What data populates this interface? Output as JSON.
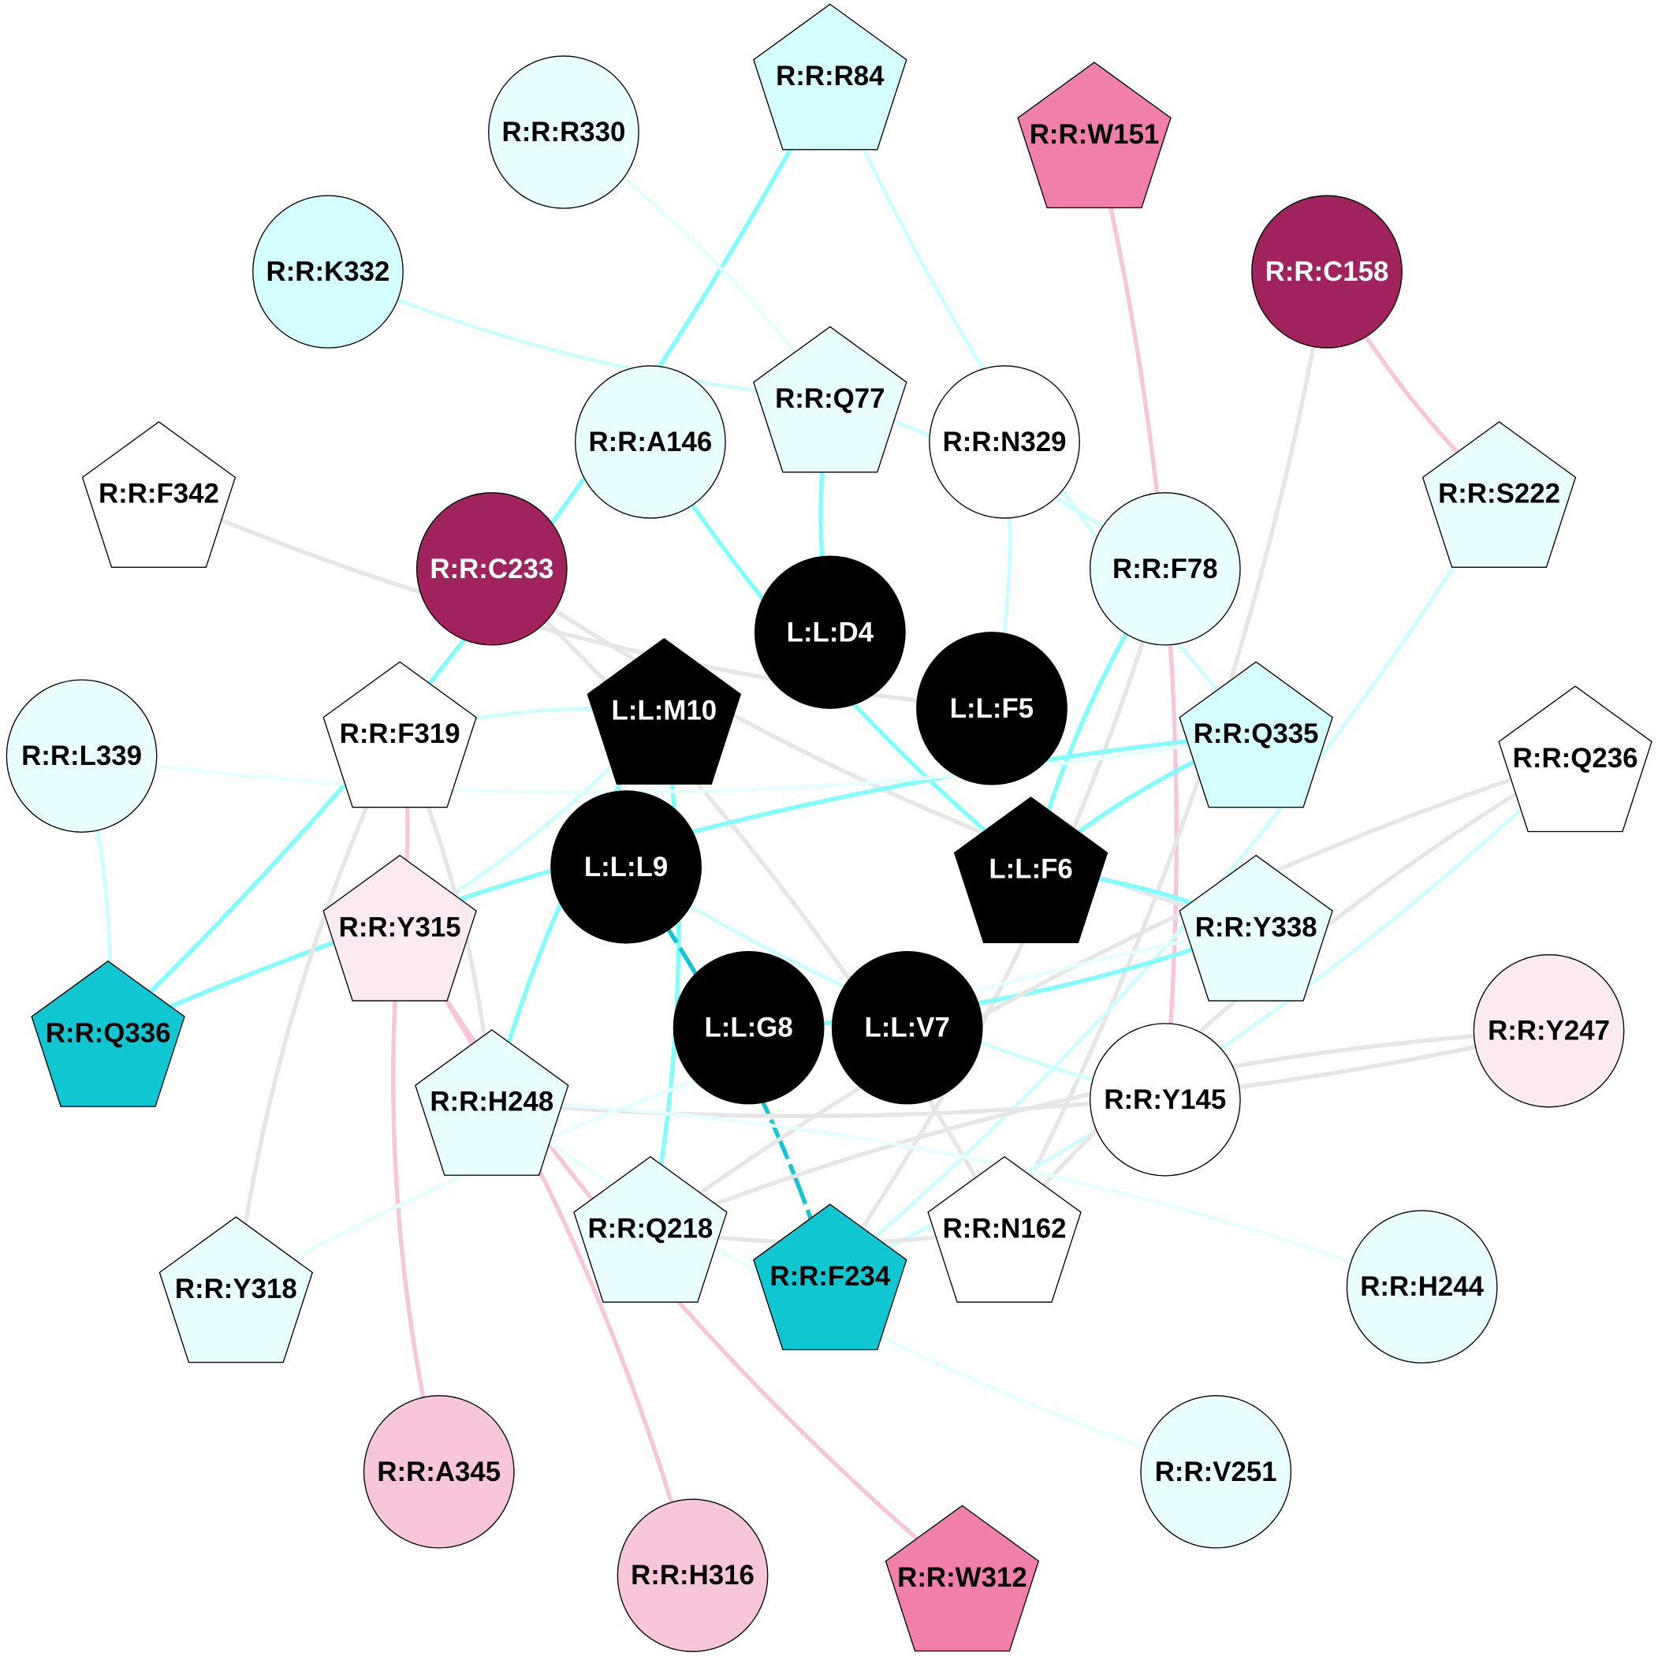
{
  "colors": {
    "cyan_strong": "#80ffff",
    "cyan_light": "#ccffff",
    "cyan_faint": "#e6ffff",
    "gray": "#e6e6e6",
    "pink": "#f7c6da",
    "teal": "#10c6d0"
  },
  "nodes": [
    {
      "id": "R84",
      "label": "R:R:R84",
      "shape": "pentagon",
      "fill": "#d4feff",
      "text": "#000000"
    },
    {
      "id": "R330",
      "label": "R:R:R330",
      "shape": "circle",
      "fill": "#e8feff",
      "text": "#000000"
    },
    {
      "id": "W151",
      "label": "R:R:W151",
      "shape": "pentagon",
      "fill": "#f07fab",
      "text": "#000000"
    },
    {
      "id": "K332",
      "label": "R:R:K332",
      "shape": "circle",
      "fill": "#d4feff",
      "text": "#000000"
    },
    {
      "id": "C158",
      "label": "R:R:C158",
      "shape": "circle",
      "fill": "#a0235e",
      "text": "#ffffff"
    },
    {
      "id": "Q77",
      "label": "R:R:Q77",
      "shape": "pentagon",
      "fill": "#e8feff",
      "text": "#000000"
    },
    {
      "id": "A146",
      "label": "R:R:A146",
      "shape": "circle",
      "fill": "#e8feff",
      "text": "#000000"
    },
    {
      "id": "N329",
      "label": "R:R:N329",
      "shape": "circle",
      "fill": "#ffffff",
      "text": "#000000"
    },
    {
      "id": "F342",
      "label": "R:R:F342",
      "shape": "pentagon",
      "fill": "#ffffff",
      "text": "#000000"
    },
    {
      "id": "S222",
      "label": "R:R:S222",
      "shape": "pentagon",
      "fill": "#e8feff",
      "text": "#000000"
    },
    {
      "id": "C233",
      "label": "R:R:C233",
      "shape": "circle",
      "fill": "#a0235e",
      "text": "#ffffff"
    },
    {
      "id": "F78",
      "label": "R:R:F78",
      "shape": "circle",
      "fill": "#e8feff",
      "text": "#000000"
    },
    {
      "id": "D4",
      "label": "L:L:D4",
      "shape": "circle",
      "fill": "#000000",
      "text": "#ffffff"
    },
    {
      "id": "M10",
      "label": "L:L:M10",
      "shape": "pentagon",
      "fill": "#000000",
      "text": "#ffffff"
    },
    {
      "id": "F5",
      "label": "L:L:F5",
      "shape": "circle",
      "fill": "#000000",
      "text": "#ffffff"
    },
    {
      "id": "F319",
      "label": "R:R:F319",
      "shape": "pentagon",
      "fill": "#ffffff",
      "text": "#000000"
    },
    {
      "id": "Q335",
      "label": "R:R:Q335",
      "shape": "pentagon",
      "fill": "#d4feff",
      "text": "#000000"
    },
    {
      "id": "L339",
      "label": "R:R:L339",
      "shape": "circle",
      "fill": "#e8feff",
      "text": "#000000"
    },
    {
      "id": "Q236",
      "label": "R:R:Q236",
      "shape": "pentagon",
      "fill": "#ffffff",
      "text": "#000000"
    },
    {
      "id": "L9",
      "label": "L:L:L9",
      "shape": "circle",
      "fill": "#000000",
      "text": "#ffffff"
    },
    {
      "id": "F6",
      "label": "L:L:F6",
      "shape": "pentagon",
      "fill": "#000000",
      "text": "#ffffff"
    },
    {
      "id": "Y315",
      "label": "R:R:Y315",
      "shape": "pentagon",
      "fill": "#fbeaf1",
      "text": "#000000"
    },
    {
      "id": "Y338",
      "label": "R:R:Y338",
      "shape": "pentagon",
      "fill": "#e8feff",
      "text": "#000000"
    },
    {
      "id": "Q336",
      "label": "R:R:Q336",
      "shape": "pentagon",
      "fill": "#10c6d0",
      "text": "#000000"
    },
    {
      "id": "G8",
      "label": "L:L:G8",
      "shape": "circle",
      "fill": "#000000",
      "text": "#ffffff"
    },
    {
      "id": "V7",
      "label": "L:L:V7",
      "shape": "circle",
      "fill": "#000000",
      "text": "#ffffff"
    },
    {
      "id": "Y247",
      "label": "R:R:Y247",
      "shape": "circle",
      "fill": "#fbeaf1",
      "text": "#000000"
    },
    {
      "id": "H248",
      "label": "R:R:H248",
      "shape": "pentagon",
      "fill": "#e8feff",
      "text": "#000000"
    },
    {
      "id": "Y145",
      "label": "R:R:Y145",
      "shape": "circle",
      "fill": "#ffffff",
      "text": "#000000"
    },
    {
      "id": "Q218",
      "label": "R:R:Q218",
      "shape": "pentagon",
      "fill": "#e8feff",
      "text": "#000000"
    },
    {
      "id": "N162",
      "label": "R:R:N162",
      "shape": "pentagon",
      "fill": "#ffffff",
      "text": "#000000"
    },
    {
      "id": "F234",
      "label": "R:R:F234",
      "shape": "pentagon",
      "fill": "#10c6d0",
      "text": "#000000"
    },
    {
      "id": "Y318",
      "label": "R:R:Y318",
      "shape": "pentagon",
      "fill": "#e8feff",
      "text": "#000000"
    },
    {
      "id": "H244",
      "label": "R:R:H244",
      "shape": "circle",
      "fill": "#e8feff",
      "text": "#000000"
    },
    {
      "id": "A345",
      "label": "R:R:A345",
      "shape": "circle",
      "fill": "#f7c6da",
      "text": "#000000"
    },
    {
      "id": "V251",
      "label": "R:R:V251",
      "shape": "circle",
      "fill": "#e8feff",
      "text": "#000000"
    },
    {
      "id": "H316",
      "label": "R:R:H316",
      "shape": "circle",
      "fill": "#f7c6da",
      "text": "#000000"
    },
    {
      "id": "W312",
      "label": "R:R:W312",
      "shape": "pentagon",
      "fill": "#f07fab",
      "text": "#000000"
    }
  ],
  "edges": [
    {
      "s": "R84",
      "t": "Q336",
      "c": "cyan_strong"
    },
    {
      "s": "R84",
      "t": "Q335",
      "c": "cyan_light"
    },
    {
      "s": "R330",
      "t": "Q77",
      "c": "cyan_faint"
    },
    {
      "s": "K332",
      "t": "Q77",
      "c": "cyan_light"
    },
    {
      "s": "W151",
      "t": "Y145",
      "c": "pink"
    },
    {
      "s": "C158",
      "t": "S222",
      "c": "pink"
    },
    {
      "s": "C158",
      "t": "N162",
      "c": "gray"
    },
    {
      "s": "Q77",
      "t": "D4",
      "c": "cyan_strong"
    },
    {
      "s": "Q77",
      "t": "F78",
      "c": "cyan_light"
    },
    {
      "s": "A146",
      "t": "F6",
      "c": "cyan_strong"
    },
    {
      "s": "N329",
      "t": "F5",
      "c": "cyan_light"
    },
    {
      "s": "F342",
      "t": "F5",
      "c": "gray"
    },
    {
      "s": "S222",
      "t": "F234",
      "c": "cyan_light"
    },
    {
      "s": "C233",
      "t": "Y338",
      "c": "gray"
    },
    {
      "s": "C233",
      "t": "N162",
      "c": "gray"
    },
    {
      "s": "F78",
      "t": "F6",
      "c": "cyan_strong"
    },
    {
      "s": "F78",
      "t": "F234",
      "c": "gray"
    },
    {
      "s": "M10",
      "t": "F319",
      "c": "cyan_light"
    },
    {
      "s": "M10",
      "t": "Y315",
      "c": "cyan_light"
    },
    {
      "s": "M10",
      "t": "H248",
      "c": "cyan_strong"
    },
    {
      "s": "M10",
      "t": "Q218",
      "c": "cyan_strong"
    },
    {
      "s": "Q335",
      "t": "Q336",
      "c": "cyan_strong"
    },
    {
      "s": "Q335",
      "t": "L339",
      "c": "cyan_faint"
    },
    {
      "s": "Q335",
      "t": "F6",
      "c": "cyan_strong"
    },
    {
      "s": "F6",
      "t": "Y338",
      "c": "cyan_strong"
    },
    {
      "s": "G8",
      "t": "Y338",
      "c": "cyan_strong"
    },
    {
      "s": "L9",
      "t": "F234",
      "c": "teal"
    },
    {
      "s": "L9",
      "t": "Y145",
      "c": "cyan_light"
    },
    {
      "s": "F319",
      "t": "Y315",
      "c": "pink"
    },
    {
      "s": "F319",
      "t": "Y318",
      "c": "gray"
    },
    {
      "s": "F319",
      "t": "H248",
      "c": "gray"
    },
    {
      "s": "Y315",
      "t": "A345",
      "c": "pink"
    },
    {
      "s": "Y315",
      "t": "H316",
      "c": "pink"
    },
    {
      "s": "Y315",
      "t": "W312",
      "c": "pink"
    },
    {
      "s": "L339",
      "t": "Q336",
      "c": "cyan_light"
    },
    {
      "s": "Q236",
      "t": "Q218",
      "c": "gray"
    },
    {
      "s": "Q236",
      "t": "F234",
      "c": "cyan_light"
    },
    {
      "s": "Q236",
      "t": "N162",
      "c": "gray"
    },
    {
      "s": "Y247",
      "t": "H248",
      "c": "gray"
    },
    {
      "s": "Y247",
      "t": "Q218",
      "c": "gray"
    },
    {
      "s": "H248",
      "t": "H244",
      "c": "cyan_faint"
    },
    {
      "s": "H248",
      "t": "V251",
      "c": "cyan_faint"
    },
    {
      "s": "Y318",
      "t": "Y338",
      "c": "cyan_faint"
    },
    {
      "s": "Q218",
      "t": "N162",
      "c": "gray"
    }
  ]
}
